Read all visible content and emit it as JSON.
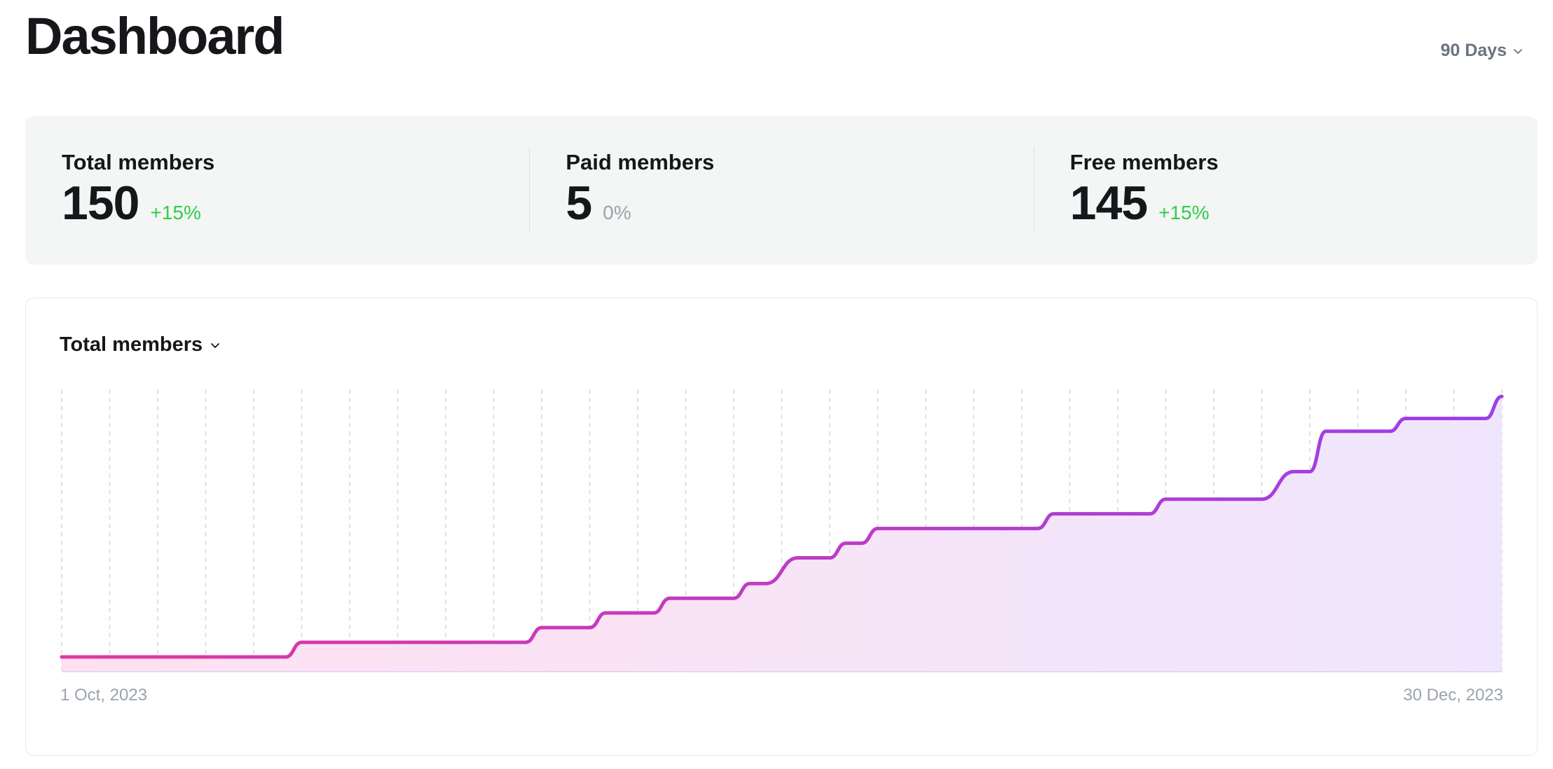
{
  "header": {
    "title": "Dashboard",
    "range_label": "90 Days"
  },
  "kpis": [
    {
      "label": "Total members",
      "value": "150",
      "delta": "+15%",
      "trend": "up"
    },
    {
      "label": "Paid members",
      "value": "5",
      "delta": "0%",
      "trend": "flat"
    },
    {
      "label": "Free members",
      "value": "145",
      "delta": "+15%",
      "trend": "up"
    }
  ],
  "chart_card": {
    "metric_label": "Total members",
    "start_date": "1 Oct, 2023",
    "end_date": "30 Dec, 2023"
  },
  "colors": {
    "line_start": "#e1379e",
    "line_end": "#9d3fe8",
    "fill_start": "#ffe1f0",
    "fill_end": "#efe6fd",
    "positive": "#30cf43",
    "neutral": "#9ca3ab"
  },
  "chart_data": {
    "type": "area",
    "x_start": "2023-10-01",
    "x_end": "2023-12-30",
    "ylim": [
      0,
      150
    ],
    "grid": "vertical-dashed",
    "points": [
      {
        "x": "2023-10-01",
        "y": 8
      },
      {
        "x": "2023-10-15",
        "y": 8
      },
      {
        "x": "2023-10-16",
        "y": 16
      },
      {
        "x": "2023-10-30",
        "y": 16
      },
      {
        "x": "2023-10-31",
        "y": 24
      },
      {
        "x": "2023-11-03",
        "y": 24
      },
      {
        "x": "2023-11-04",
        "y": 32
      },
      {
        "x": "2023-11-07",
        "y": 32
      },
      {
        "x": "2023-11-08",
        "y": 40
      },
      {
        "x": "2023-11-12",
        "y": 40
      },
      {
        "x": "2023-11-13",
        "y": 48
      },
      {
        "x": "2023-11-14",
        "y": 48
      },
      {
        "x": "2023-11-16",
        "y": 62
      },
      {
        "x": "2023-11-18",
        "y": 62
      },
      {
        "x": "2023-11-19",
        "y": 70
      },
      {
        "x": "2023-11-20",
        "y": 70
      },
      {
        "x": "2023-11-21",
        "y": 78
      },
      {
        "x": "2023-12-01",
        "y": 78
      },
      {
        "x": "2023-12-02",
        "y": 86
      },
      {
        "x": "2023-12-08",
        "y": 86
      },
      {
        "x": "2023-12-09",
        "y": 94
      },
      {
        "x": "2023-12-15",
        "y": 94
      },
      {
        "x": "2023-12-17",
        "y": 109
      },
      {
        "x": "2023-12-18",
        "y": 109
      },
      {
        "x": "2023-12-19",
        "y": 131
      },
      {
        "x": "2023-12-23",
        "y": 131
      },
      {
        "x": "2023-12-24",
        "y": 138
      },
      {
        "x": "2023-12-29",
        "y": 138
      },
      {
        "x": "2023-12-30",
        "y": 150
      }
    ]
  }
}
